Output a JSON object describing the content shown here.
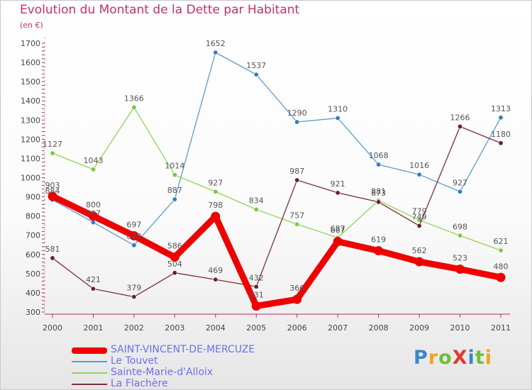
{
  "title": "Evolution du Montant de la Dette par Habitant",
  "subtitle": "(en €)",
  "logo": {
    "text": "ProXiti",
    "letters": [
      "P",
      "r",
      "o",
      "X",
      "i",
      "t",
      "i"
    ],
    "colors": [
      "#3a87c8",
      "#f5a21d",
      "#6cbf3b",
      "#e03b2d",
      "#3a87c8",
      "#6cbf3b",
      "#f5a21d"
    ]
  },
  "chart_data": {
    "type": "line",
    "x": [
      "2000",
      "2001",
      "2002",
      "2003",
      "2004",
      "2005",
      "2006",
      "2007",
      "2008",
      "2009",
      "2010",
      "2011"
    ],
    "ylim": [
      300,
      1700
    ],
    "yticks": [
      300,
      400,
      500,
      600,
      700,
      800,
      900,
      1000,
      1100,
      1200,
      1300,
      1400,
      1500,
      1600,
      1700
    ],
    "grid": false,
    "legend_position": "bottom-left",
    "series": [
      {
        "name": "Le Touvet",
        "color": "#5b9bd1",
        "marker_color": "#2e7dc0",
        "values": [
          884,
          767,
          648,
          887,
          1652,
          1537,
          1290,
          1310,
          1068,
          1016,
          927,
          1313
        ]
      },
      {
        "name": "Sainte-Marie-d'Alloix",
        "color": "#8fd45a",
        "marker_color": "#7cc63f",
        "values": [
          1127,
          1043,
          1366,
          1014,
          927,
          834,
          757,
          687,
          881,
          779,
          698,
          621
        ]
      },
      {
        "name": "La Flachère",
        "color": "#7a2e36",
        "marker_color": "#6b1f28",
        "values": [
          581,
          421,
          379,
          504,
          469,
          432,
          987,
          921,
          873,
          749,
          1266,
          1180
        ]
      },
      {
        "name": "SAINT-VINCENT-DE-MERCUZE",
        "color": "#ee0000",
        "marker_color": "#ee0000",
        "emphasis": true,
        "values": [
          903,
          800,
          697,
          586,
          798,
          331,
          366,
          667,
          619,
          562,
          523,
          480
        ]
      }
    ],
    "legend": [
      {
        "name": "SAINT-VINCENT-DE-MERCUZE",
        "color": "#ee0000",
        "text_color": "#6f6fee",
        "thick": true
      },
      {
        "name": "Le Touvet",
        "color": "#5b9bd1",
        "text_color": "#6f6fee",
        "thick": false
      },
      {
        "name": "Sainte-Marie-d'Alloix",
        "color": "#8fd45a",
        "text_color": "#6f6fee",
        "thick": false
      },
      {
        "name": "La Flachère",
        "color": "#7a2e36",
        "text_color": "#6f6fee",
        "thick": false
      }
    ]
  }
}
